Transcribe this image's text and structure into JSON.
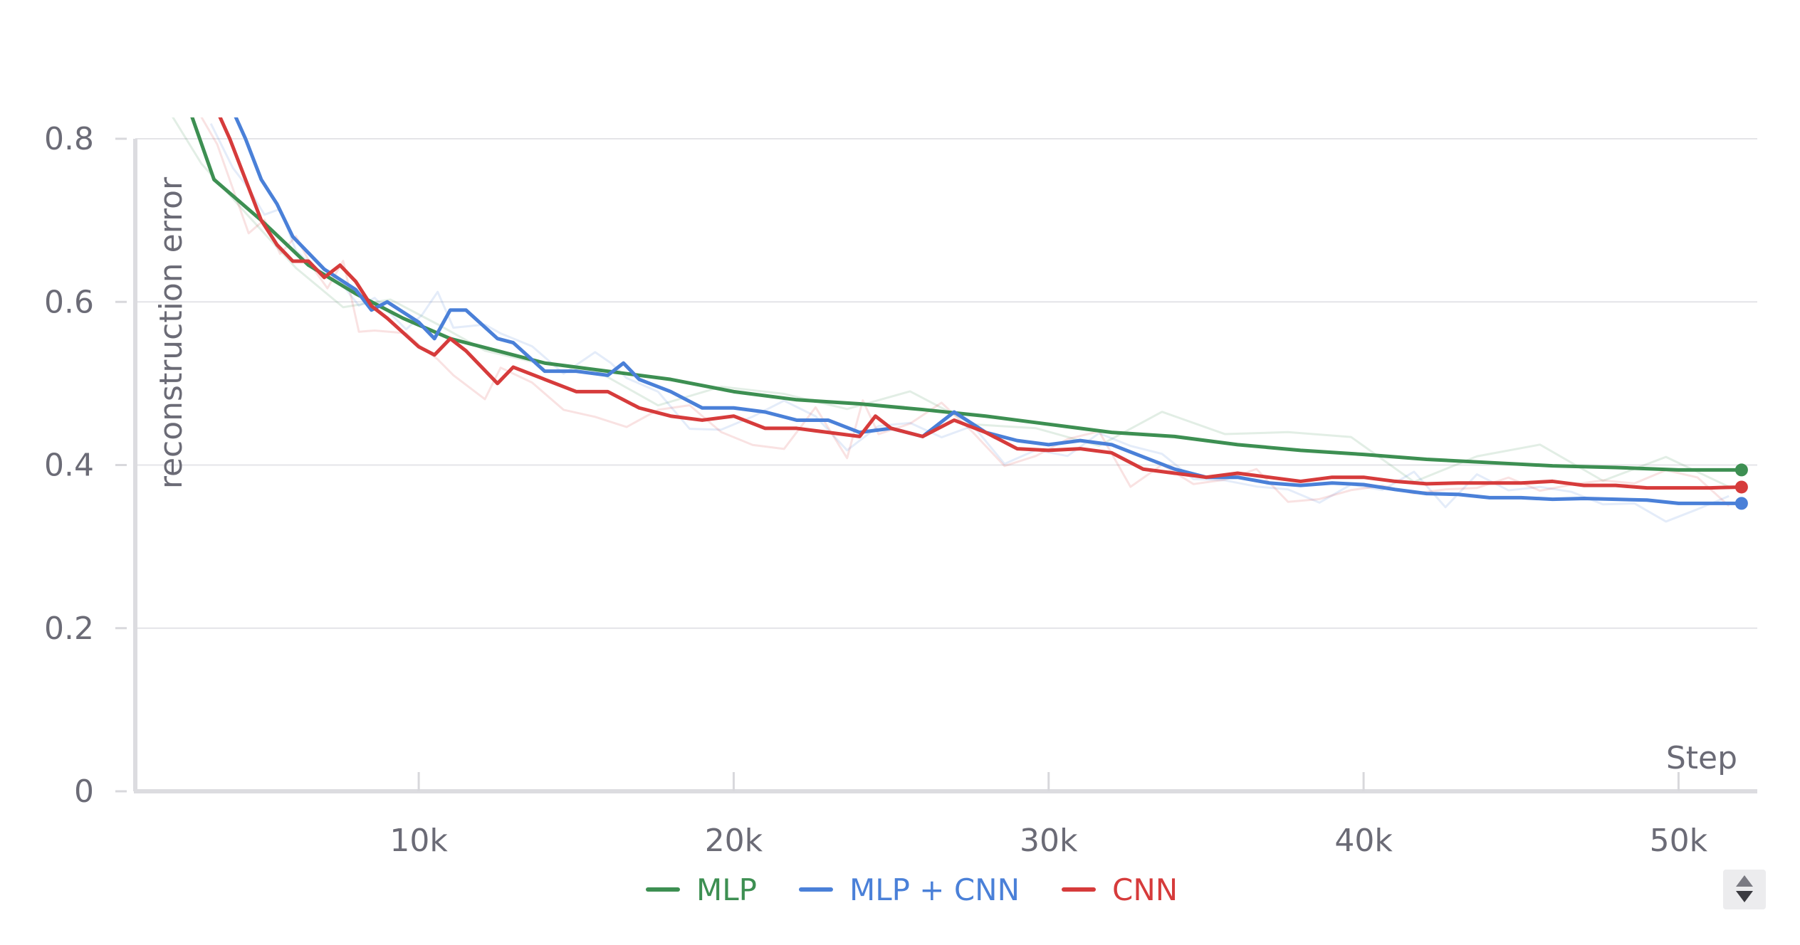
{
  "chart_data": {
    "type": "line",
    "title": "",
    "xlabel": "Step",
    "ylabel": "reconstruction error",
    "xlim": [
      1000,
      52500
    ],
    "ylim": [
      0,
      0.8
    ],
    "x_ticks": [
      10000,
      20000,
      30000,
      40000,
      50000
    ],
    "x_tick_labels": [
      "10k",
      "20k",
      "30k",
      "40k",
      "50k"
    ],
    "y_ticks": [
      0,
      0.2,
      0.4,
      0.6,
      0.8
    ],
    "y_tick_labels": [
      "0",
      "0.2",
      "0.4",
      "0.6",
      "0.8"
    ],
    "grid": true,
    "legend": "bottom-center",
    "series": [
      {
        "name": "MLP",
        "color": "#3d8f52",
        "x": [
          2500,
          3500,
          5000,
          6500,
          8000,
          9500,
          11000,
          12500,
          14000,
          16000,
          18000,
          20000,
          22000,
          24000,
          26000,
          28000,
          30000,
          32000,
          34000,
          36000,
          38000,
          40000,
          42000,
          44000,
          46000,
          48000,
          50000,
          52000
        ],
        "values": [
          0.86,
          0.75,
          0.7,
          0.645,
          0.61,
          0.58,
          0.555,
          0.54,
          0.525,
          0.515,
          0.505,
          0.49,
          0.48,
          0.475,
          0.468,
          0.46,
          0.45,
          0.44,
          0.435,
          0.425,
          0.418,
          0.413,
          0.407,
          0.403,
          0.399,
          0.397,
          0.394,
          0.394
        ]
      },
      {
        "name": "MLP + CNN",
        "color": "#4a80d8",
        "x": [
          3800,
          4500,
          5000,
          5500,
          6000,
          6500,
          7000,
          8000,
          8500,
          9000,
          10000,
          10500,
          11000,
          11500,
          12500,
          13000,
          14000,
          15000,
          16000,
          16500,
          17000,
          18000,
          19000,
          20000,
          21000,
          22000,
          23000,
          24000,
          25000,
          26000,
          27000,
          28000,
          29000,
          30000,
          31000,
          32000,
          33000,
          34000,
          35000,
          36000,
          37000,
          38000,
          39000,
          40000,
          41000,
          42000,
          43000,
          44000,
          45000,
          46000,
          47000,
          48000,
          49000,
          50000,
          51000,
          52000
        ],
        "values": [
          0.86,
          0.8,
          0.75,
          0.72,
          0.68,
          0.66,
          0.64,
          0.615,
          0.59,
          0.6,
          0.575,
          0.555,
          0.59,
          0.59,
          0.555,
          0.55,
          0.515,
          0.515,
          0.51,
          0.525,
          0.505,
          0.49,
          0.47,
          0.47,
          0.465,
          0.455,
          0.455,
          0.44,
          0.445,
          0.435,
          0.465,
          0.44,
          0.43,
          0.425,
          0.43,
          0.425,
          0.41,
          0.395,
          0.385,
          0.385,
          0.378,
          0.375,
          0.378,
          0.376,
          0.37,
          0.365,
          0.364,
          0.36,
          0.36,
          0.358,
          0.359,
          0.358,
          0.357,
          0.353,
          0.353,
          0.353
        ]
      },
      {
        "name": "CNN",
        "color": "#d63b3b",
        "x": [
          3300,
          4000,
          5000,
          5500,
          6000,
          6500,
          7000,
          7500,
          8000,
          8500,
          9000,
          10000,
          10500,
          11000,
          11500,
          12500,
          13000,
          14000,
          15000,
          16000,
          17000,
          18000,
          19000,
          20000,
          21000,
          22000,
          23000,
          24000,
          24500,
          25000,
          26000,
          27000,
          28000,
          29000,
          30000,
          31000,
          32000,
          33000,
          34000,
          35000,
          36000,
          37000,
          38000,
          39000,
          40000,
          41000,
          42000,
          43000,
          44000,
          45000,
          46000,
          47000,
          48000,
          49000,
          50000,
          51000,
          52000
        ],
        "values": [
          0.86,
          0.8,
          0.7,
          0.67,
          0.65,
          0.65,
          0.63,
          0.645,
          0.625,
          0.595,
          0.58,
          0.545,
          0.535,
          0.555,
          0.54,
          0.5,
          0.52,
          0.505,
          0.49,
          0.49,
          0.47,
          0.46,
          0.455,
          0.46,
          0.445,
          0.445,
          0.44,
          0.435,
          0.46,
          0.445,
          0.435,
          0.455,
          0.44,
          0.42,
          0.418,
          0.42,
          0.415,
          0.395,
          0.39,
          0.385,
          0.39,
          0.385,
          0.38,
          0.385,
          0.385,
          0.38,
          0.377,
          0.378,
          0.378,
          0.378,
          0.38,
          0.375,
          0.375,
          0.372,
          0.372,
          0.372,
          0.373
        ]
      }
    ]
  }
}
